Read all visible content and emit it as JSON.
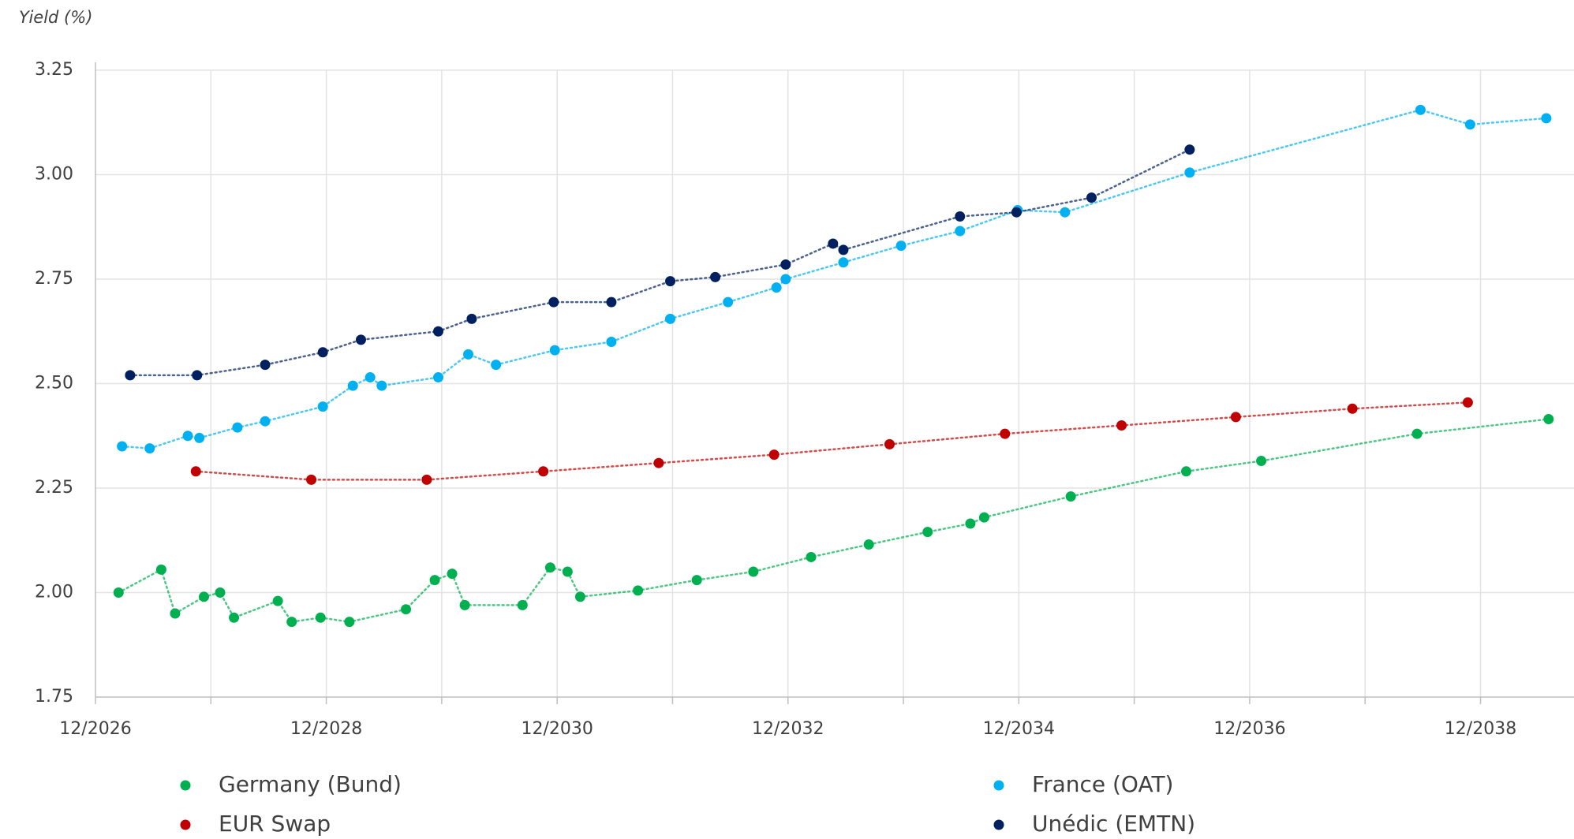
{
  "chart_data": {
    "type": "scatter",
    "y_label": "Yield (%)",
    "xlim": [
      2026.92,
      2039.73
    ],
    "ylim": [
      1.75,
      3.25
    ],
    "xticks": [
      {
        "value": 2026.92,
        "label": "12/2026"
      },
      {
        "value": 2028.92,
        "label": "12/2028"
      },
      {
        "value": 2030.92,
        "label": "12/2030"
      },
      {
        "value": 2032.92,
        "label": "12/2032"
      },
      {
        "value": 2034.92,
        "label": "12/2034"
      },
      {
        "value": 2036.92,
        "label": "12/2036"
      },
      {
        "value": 2038.92,
        "label": "12/2038"
      }
    ],
    "xminorticks": [
      2027.92,
      2029.92,
      2031.92,
      2033.92,
      2035.92,
      2037.92,
      2039.92
    ],
    "yticks": [
      {
        "value": 1.75,
        "label": "1.75"
      },
      {
        "value": 2.0,
        "label": "2.00"
      },
      {
        "value": 2.25,
        "label": "2.25"
      },
      {
        "value": 2.5,
        "label": "2.50"
      },
      {
        "value": 2.75,
        "label": "2.75"
      },
      {
        "value": 3.0,
        "label": "3.00"
      },
      {
        "value": 3.25,
        "label": "3.25"
      }
    ],
    "grid": true,
    "series": [
      {
        "name": "Germany (Bund)",
        "color": "#00b050",
        "x": [
          2027.12,
          2027.49,
          2027.61,
          2027.86,
          2028.0,
          2028.12,
          2028.5,
          2028.62,
          2028.87,
          2029.12,
          2029.61,
          2029.86,
          2030.01,
          2030.12,
          2030.62,
          2030.86,
          2031.01,
          2031.12,
          2031.62,
          2032.13,
          2032.62,
          2033.12,
          2033.62,
          2034.13,
          2034.5,
          2034.62,
          2035.37,
          2036.37,
          2037.02,
          2038.37,
          2039.51
        ],
        "values": [
          2.0,
          2.055,
          1.95,
          1.99,
          2.0,
          1.94,
          1.98,
          1.93,
          1.94,
          1.93,
          1.96,
          2.03,
          2.045,
          1.97,
          1.97,
          2.06,
          2.05,
          1.99,
          2.005,
          2.03,
          2.05,
          2.085,
          2.115,
          2.145,
          2.165,
          2.18,
          2.23,
          2.29,
          2.315,
          2.38,
          2.415
        ]
      },
      {
        "name": "France (OAT)",
        "color": "#00b0f0",
        "x": [
          2027.15,
          2027.39,
          2027.72,
          2027.82,
          2028.15,
          2028.39,
          2028.89,
          2029.15,
          2029.3,
          2029.4,
          2029.89,
          2030.15,
          2030.39,
          2030.9,
          2031.39,
          2031.9,
          2032.4,
          2032.82,
          2032.9,
          2033.4,
          2033.9,
          2034.41,
          2034.91,
          2035.32,
          2036.4,
          2038.4,
          2038.83,
          2039.49
        ],
        "values": [
          2.35,
          2.345,
          2.375,
          2.37,
          2.395,
          2.41,
          2.445,
          2.495,
          2.515,
          2.495,
          2.515,
          2.57,
          2.545,
          2.58,
          2.6,
          2.655,
          2.695,
          2.73,
          2.75,
          2.79,
          2.83,
          2.865,
          2.915,
          2.91,
          3.005,
          3.155,
          3.12,
          3.135
        ]
      },
      {
        "name": "EUR Swap",
        "color": "#c00000",
        "x": [
          2027.79,
          2028.79,
          2029.79,
          2030.8,
          2031.8,
          2032.8,
          2033.8,
          2034.8,
          2035.81,
          2036.8,
          2037.81,
          2038.81
        ],
        "values": [
          2.29,
          2.27,
          2.27,
          2.29,
          2.31,
          2.33,
          2.355,
          2.38,
          2.4,
          2.42,
          2.44,
          2.455
        ]
      },
      {
        "name": "Unédic (EMTN)",
        "color": "#002060",
        "x": [
          2027.22,
          2027.8,
          2028.39,
          2028.89,
          2029.22,
          2029.89,
          2030.18,
          2030.89,
          2031.39,
          2031.9,
          2032.29,
          2032.9,
          2033.31,
          2033.4,
          2034.41,
          2034.9,
          2035.55,
          2036.4
        ],
        "values": [
          2.52,
          2.52,
          2.545,
          2.575,
          2.605,
          2.625,
          2.655,
          2.695,
          2.695,
          2.745,
          2.755,
          2.785,
          2.835,
          2.82,
          2.9,
          2.91,
          2.945,
          3.06
        ]
      }
    ]
  }
}
